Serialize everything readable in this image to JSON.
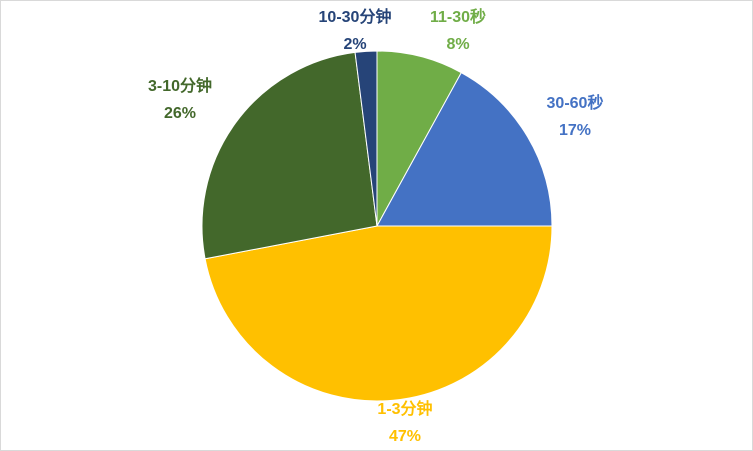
{
  "chart_data": {
    "type": "pie",
    "categories": [
      "11-30秒",
      "30-60秒",
      "1-3分钟",
      "3-10分钟",
      "10-30分钟"
    ],
    "values": [
      8,
      17,
      47,
      26,
      2
    ],
    "value_labels": [
      "8%",
      "17%",
      "47%",
      "26%",
      "2%"
    ],
    "colors": [
      "#70ad47",
      "#4472c4",
      "#ffc000",
      "#43682b",
      "#264478"
    ]
  }
}
